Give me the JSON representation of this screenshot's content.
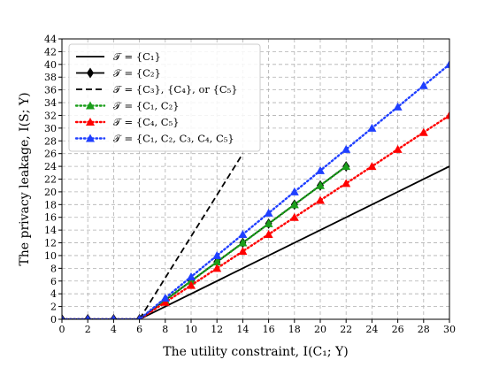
{
  "chart_data": {
    "type": "line",
    "xlabel": "The utility constraint, I(C₁; Y)",
    "ylabel": "The privacy leakage, I(S; Y)",
    "xlim": [
      0,
      30
    ],
    "ylim": [
      0,
      44
    ],
    "xticks": [
      0,
      2,
      4,
      6,
      8,
      10,
      12,
      14,
      16,
      18,
      20,
      22,
      24,
      26,
      28,
      30
    ],
    "yticks": [
      0,
      2,
      4,
      6,
      8,
      10,
      12,
      14,
      16,
      18,
      20,
      22,
      24,
      26,
      28,
      30,
      32,
      34,
      36,
      38,
      40,
      42,
      44
    ],
    "grid": true,
    "legend_position": "top-left",
    "series": [
      {
        "name": "𝒯 = {C₁}",
        "color": "#000000",
        "line_style": "solid",
        "marker": "none",
        "x": [
          0,
          6,
          30
        ],
        "y": [
          0,
          0,
          24
        ]
      },
      {
        "name": "𝒯 = {C₂}",
        "color": "#000000",
        "line_style": "solid",
        "marker": "diamond",
        "x": [
          0,
          2,
          4,
          6,
          8,
          10,
          12,
          14,
          16,
          18,
          20,
          22
        ],
        "y": [
          0,
          0,
          0,
          0,
          3,
          6,
          9,
          12,
          15,
          18,
          21,
          24
        ]
      },
      {
        "name": "𝒯 = {C₃}, {C₄}, or {C₅}",
        "color": "#000000",
        "line_style": "dashed",
        "marker": "none",
        "x": [
          0,
          6,
          14
        ],
        "y": [
          0,
          0,
          26
        ]
      },
      {
        "name": "𝒯 = {C₁, C₂}",
        "color": "#1a9e1a",
        "line_style": "dotted",
        "marker": "triangle",
        "x": [
          0,
          2,
          4,
          6,
          8,
          10,
          12,
          14,
          16,
          18,
          20,
          22
        ],
        "y": [
          0,
          0,
          0,
          0,
          3,
          6,
          9,
          12,
          15,
          18,
          21,
          24
        ]
      },
      {
        "name": "𝒯 = {C₄, C₅}",
        "color": "#ff0000",
        "line_style": "dotted",
        "marker": "triangle",
        "x": [
          0,
          2,
          4,
          6,
          8,
          10,
          12,
          14,
          16,
          18,
          20,
          22,
          24,
          26,
          28,
          30
        ],
        "y": [
          0,
          0,
          0,
          0,
          2.67,
          5.33,
          8,
          10.67,
          13.33,
          16,
          18.67,
          21.33,
          24,
          26.67,
          29.33,
          32
        ]
      },
      {
        "name": "𝒯 = {C₁, C₂, C₃, C₄, C₅}",
        "color": "#1f3fff",
        "line_style": "dotted",
        "marker": "triangle",
        "x": [
          0,
          2,
          4,
          6,
          8,
          10,
          12,
          14,
          16,
          18,
          20,
          22,
          24,
          26,
          28,
          30
        ],
        "y": [
          0,
          0,
          0,
          0,
          3.33,
          6.67,
          10,
          13.33,
          16.67,
          20,
          23.33,
          26.67,
          30,
          33.33,
          36.67,
          40
        ]
      }
    ]
  }
}
